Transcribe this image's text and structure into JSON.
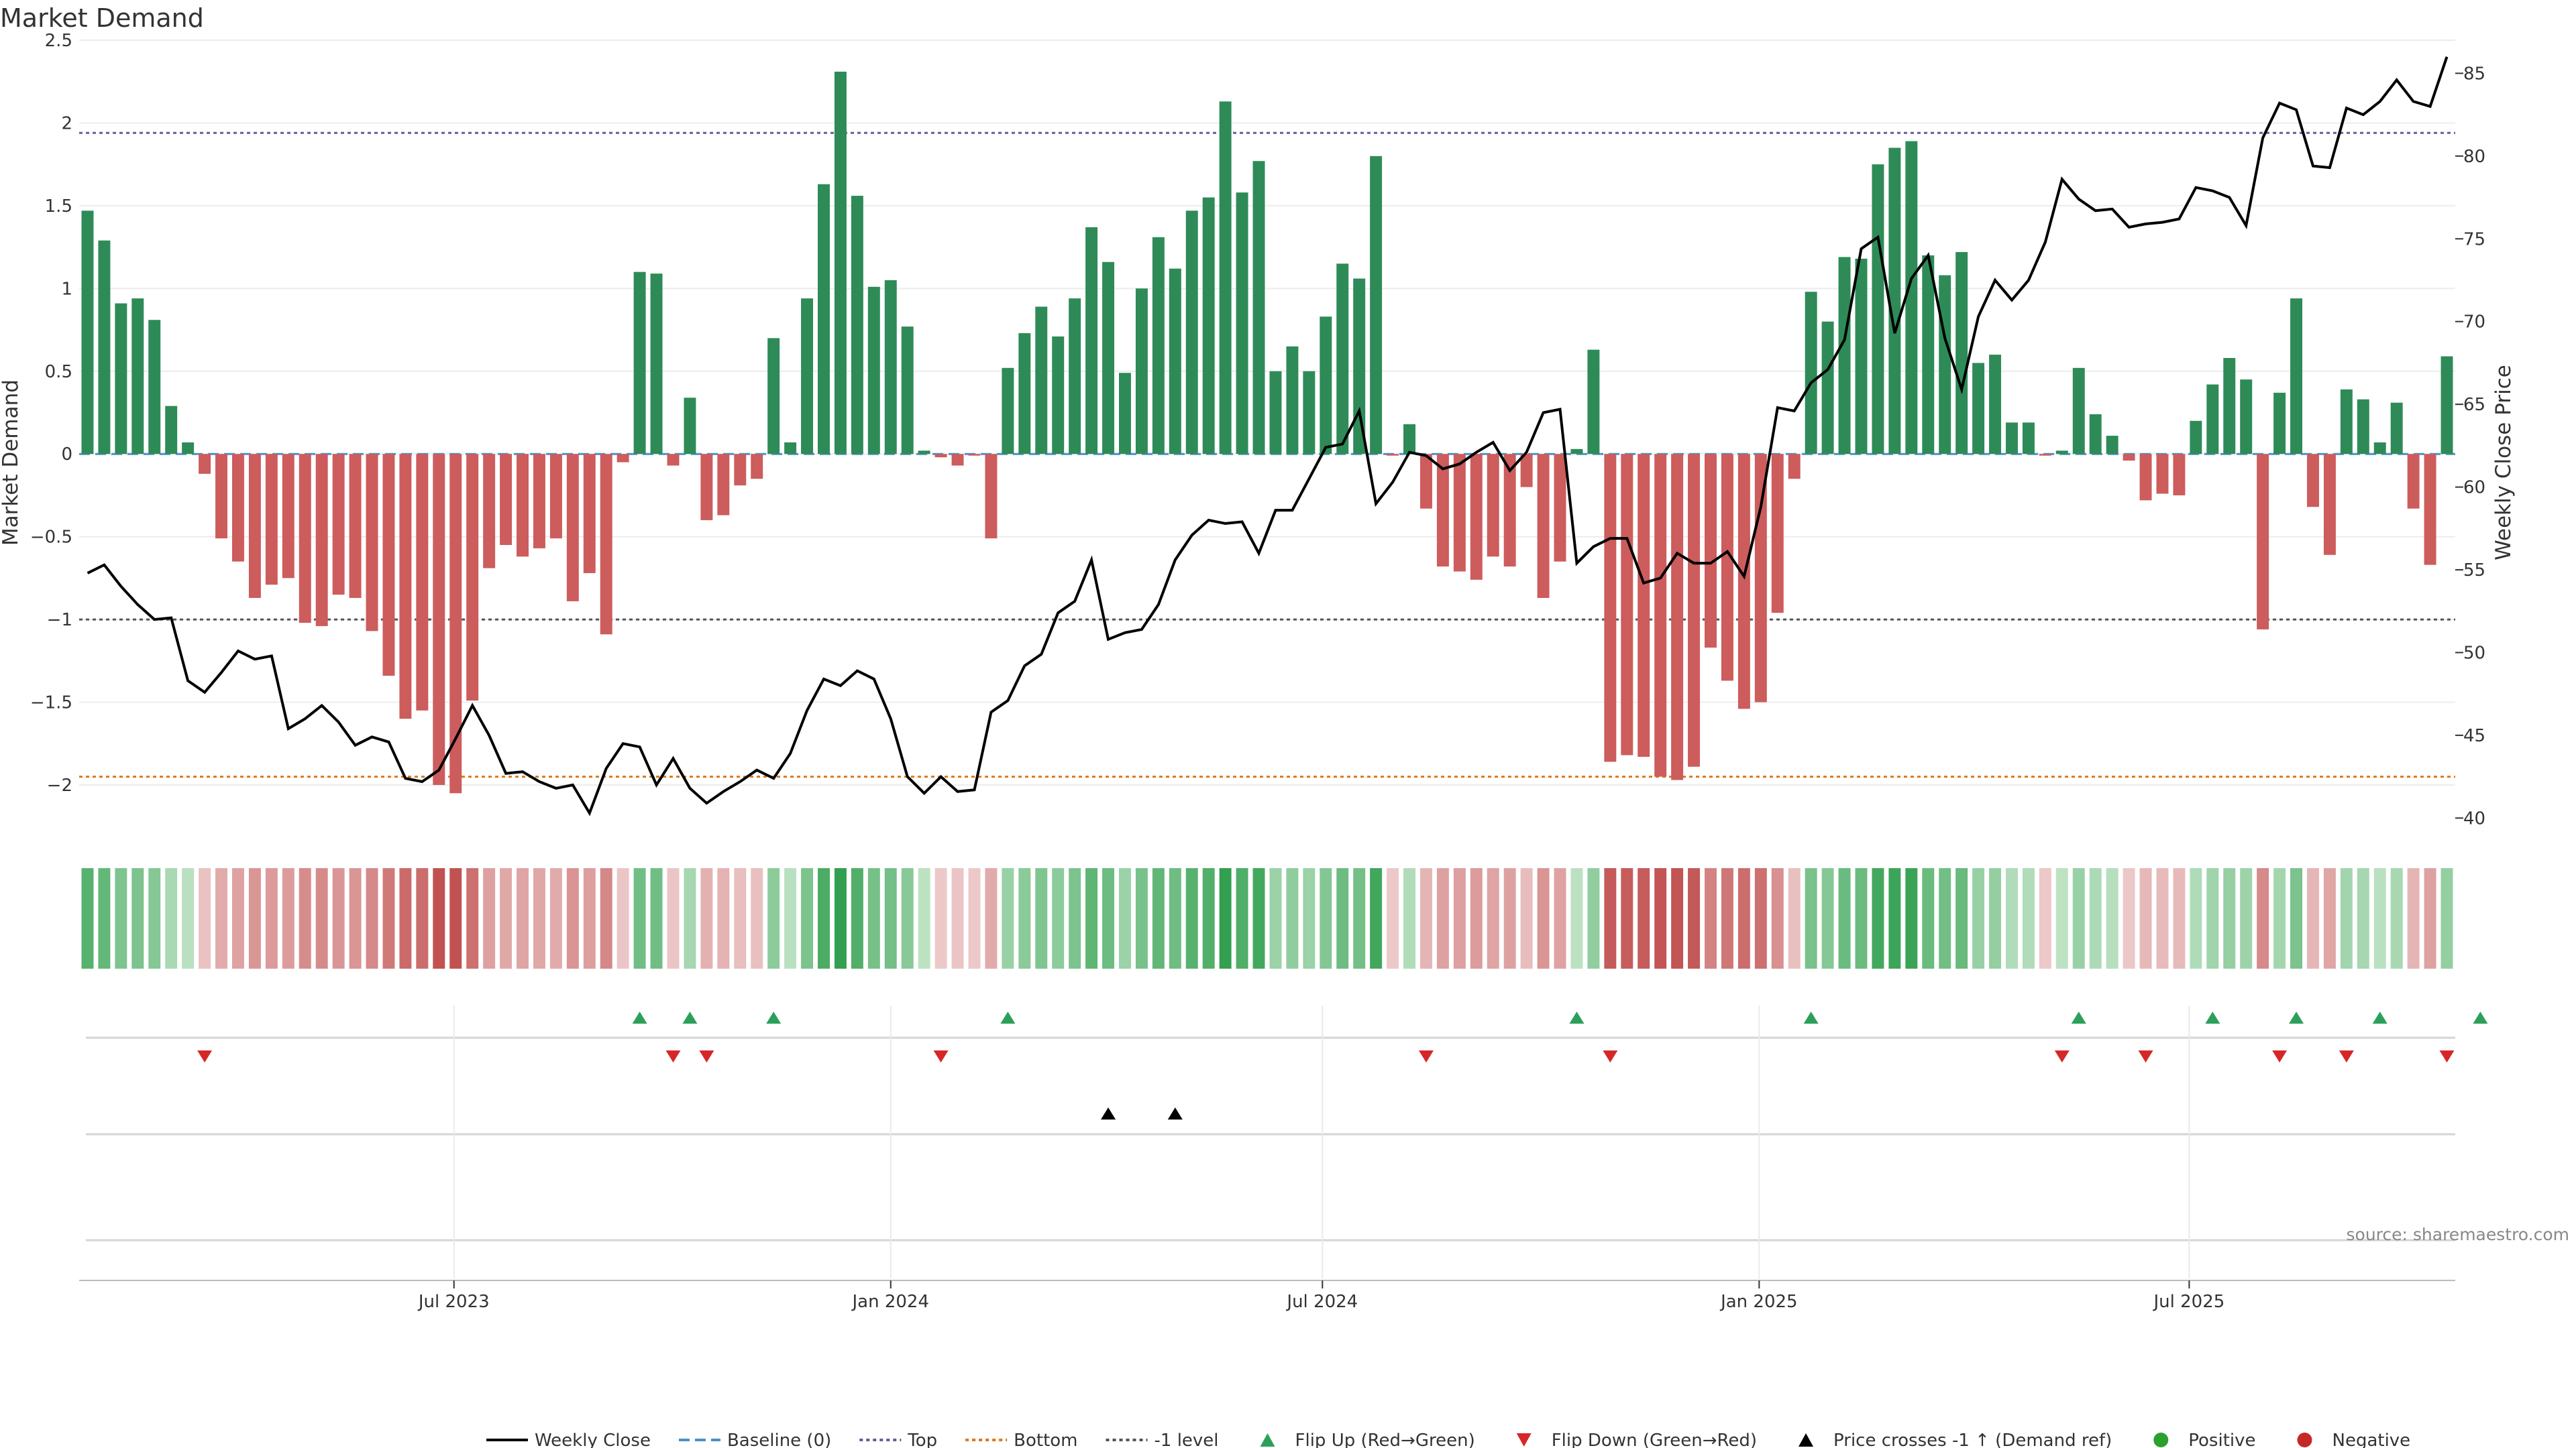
{
  "chart_data": {
    "type": "bar",
    "title": "Market Demand",
    "ylabel": "Market Demand",
    "y2label": "Weekly Close Price",
    "ylim": [
      -2.3,
      2.5
    ],
    "y2lim": [
      39,
      87
    ],
    "yticks": [
      2.5,
      2,
      1.5,
      1,
      0.5,
      0,
      -0.5,
      -1,
      -1.5,
      -2
    ],
    "ytick_labels": [
      "2.5",
      "2",
      "1.5",
      "1",
      "0.5",
      "0",
      "−0.5",
      "−1",
      "−1.5",
      "−2"
    ],
    "y2ticks": [
      85,
      80,
      75,
      70,
      65,
      60,
      55,
      50,
      45,
      40
    ],
    "x_date_labels": [
      "Jul 2023",
      "Jan 2024",
      "Jul 2024",
      "Jan 2025",
      "Jul 2025"
    ],
    "x_date_label_week_index": [
      22.4,
      48.5,
      74.3,
      100.4,
      126.1
    ],
    "reference_lines": {
      "top": 1.94,
      "minus_one_level": -1.0,
      "bottom": -1.95,
      "baseline": 0
    },
    "series": [
      {
        "name": "Market Demand",
        "values": [
          1.47,
          1.29,
          0.91,
          0.94,
          0.81,
          0.29,
          0.07,
          -0.12,
          -0.51,
          -0.65,
          -0.87,
          -0.79,
          -0.75,
          -1.02,
          -1.04,
          -0.85,
          -0.87,
          -1.07,
          -1.34,
          -1.6,
          -1.55,
          -2.0,
          -2.05,
          -1.49,
          -0.69,
          -0.55,
          -0.62,
          -0.57,
          -0.51,
          -0.89,
          -0.72,
          -1.09,
          -0.05,
          1.1,
          1.09,
          -0.07,
          0.34,
          -0.4,
          -0.37,
          -0.19,
          -0.15,
          0.7,
          0.07,
          0.94,
          1.63,
          2.31,
          1.56,
          1.01,
          1.05,
          0.77,
          0.02,
          -0.02,
          -0.07,
          -0.01,
          -0.51,
          0.52,
          0.73,
          0.89,
          0.71,
          0.94,
          1.37,
          1.16,
          0.49,
          1.0,
          1.31,
          1.12,
          1.47,
          1.55,
          2.13,
          1.58,
          1.77,
          0.5,
          0.65,
          0.5,
          0.83,
          1.15,
          1.06,
          1.8,
          -0.01,
          0.18,
          -0.33,
          -0.68,
          -0.71,
          -0.76,
          -0.62,
          -0.68,
          -0.2,
          -0.87,
          -0.65,
          0.03,
          0.63,
          -1.86,
          -1.82,
          -1.83,
          -1.95,
          -1.97,
          -1.89,
          -1.17,
          -1.37,
          -1.54,
          -1.5,
          -0.96,
          -0.15,
          0.98,
          0.8,
          1.19,
          1.18,
          1.75,
          1.85,
          1.89,
          1.2,
          1.08,
          1.22,
          0.55,
          0.6,
          0.19,
          0.19,
          -0.01,
          0.02,
          0.52,
          0.24,
          0.11,
          -0.04,
          -0.28,
          -0.24,
          -0.25,
          0.2,
          0.42,
          0.58,
          0.45,
          -1.06,
          0.37,
          0.94,
          -0.32,
          -0.61,
          0.39,
          0.33,
          0.07,
          0.31,
          -0.33,
          -0.67,
          0.59
        ]
      },
      {
        "name": "Weekly Close",
        "axis": "right",
        "values": [
          54.8,
          55.3,
          54.0,
          52.9,
          52.0,
          52.1,
          48.3,
          47.6,
          48.8,
          50.1,
          49.6,
          49.8,
          45.4,
          46.0,
          46.8,
          45.8,
          44.4,
          44.9,
          44.6,
          42.4,
          42.2,
          42.9,
          44.8,
          46.8,
          45.0,
          42.7,
          42.8,
          42.2,
          41.8,
          42.0,
          40.3,
          43.0,
          44.5,
          44.3,
          42.0,
          43.6,
          41.8,
          40.9,
          41.6,
          42.2,
          42.9,
          42.4,
          43.9,
          46.5,
          48.4,
          48.0,
          48.9,
          48.4,
          46.0,
          42.5,
          41.5,
          42.5,
          41.6,
          41.7,
          46.4,
          47.1,
          49.2,
          49.9,
          52.4,
          53.1,
          55.6,
          50.8,
          51.2,
          51.4,
          52.9,
          55.6,
          57.1,
          58.0,
          57.8,
          57.9,
          56.0,
          58.6,
          58.6,
          60.5,
          62.4,
          62.6,
          64.6,
          59.0,
          60.3,
          62.1,
          61.9,
          61.1,
          61.4,
          62.1,
          62.7,
          61.0,
          62.1,
          64.5,
          64.7,
          55.4,
          56.4,
          56.9,
          56.9,
          54.2,
          54.5,
          56.0,
          55.4,
          55.4,
          56.1,
          54.6,
          58.8,
          64.8,
          64.6,
          66.3,
          67.1,
          68.9,
          74.4,
          75.1,
          69.3,
          72.6,
          74.0,
          69.0,
          65.9,
          70.3,
          72.5,
          71.3,
          72.5,
          74.8,
          78.6,
          77.4,
          76.7,
          76.8,
          75.7,
          75.9,
          76.0,
          76.2,
          78.1,
          77.9,
          77.5,
          75.8,
          81.1,
          83.2,
          82.8,
          79.4,
          79.3,
          82.9,
          82.5,
          83.3,
          84.6,
          83.3,
          83.0,
          86.0
        ]
      }
    ],
    "flip_up_week_index": [
      33,
      36,
      41,
      55,
      89,
      103,
      119,
      127,
      132,
      137,
      143
    ],
    "flip_down_week_index": [
      7,
      35,
      37,
      51,
      80,
      91,
      118,
      123,
      131,
      135,
      141
    ],
    "price_cross_week_index": [
      61,
      65
    ],
    "legend": [
      {
        "label": "Weekly Close",
        "style": "line",
        "color": "#000000"
      },
      {
        "label": "Baseline (0)",
        "style": "dash",
        "color": "#4a90c8"
      },
      {
        "label": "Top",
        "style": "dot",
        "color": "#6a5a9a"
      },
      {
        "label": "Bottom",
        "style": "dot",
        "color": "#d97a1c"
      },
      {
        "label": "-1 level",
        "style": "dot",
        "color": "#555555"
      },
      {
        "label": "Flip Up (Red→Green)",
        "style": "tri-up",
        "color": "#2ca05a"
      },
      {
        "label": "Flip Down (Green→Red)",
        "style": "tri-down",
        "color": "#d62728"
      },
      {
        "label": "Price crosses -1 ↑ (Demand ref)",
        "style": "tri-up",
        "color": "#000000"
      },
      {
        "label": "Positive",
        "style": "circle",
        "color": "#2ca02c"
      },
      {
        "label": "Negative",
        "style": "circle",
        "color": "#c62828"
      }
    ],
    "colors": {
      "positive_bar": "#2e8b57",
      "negative_bar": "#cd5c5c",
      "price_line": "#000000"
    }
  },
  "source_note": "source: sharemaestro.com"
}
